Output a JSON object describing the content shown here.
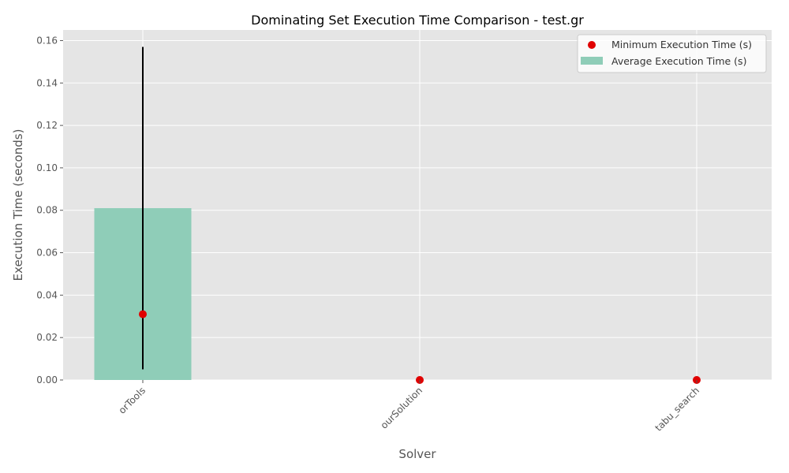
{
  "chart_data": {
    "type": "bar",
    "title": "Dominating Set Execution Time Comparison - test.gr",
    "xlabel": "Solver",
    "ylabel": "Execution Time (seconds)",
    "categories": [
      "orTools",
      "ourSolution",
      "tabu_search"
    ],
    "ylim": [
      0,
      0.165
    ],
    "yticks": [
      0.0,
      0.02,
      0.04,
      0.06,
      0.08,
      0.1,
      0.12,
      0.14,
      0.16
    ],
    "ytick_labels": [
      "0.00",
      "0.02",
      "0.04",
      "0.06",
      "0.08",
      "0.10",
      "0.12",
      "0.14",
      "0.16"
    ],
    "grid": true,
    "legend_position": "top-right",
    "series": [
      {
        "name": "Average Execution Time (s)",
        "kind": "bar",
        "color": "#8fcdb8",
        "values": [
          0.081,
          0.0,
          0.0
        ],
        "error": [
          [
            0.005,
            0.157
          ],
          [
            0.0,
            0.0
          ],
          [
            0.0,
            0.0
          ]
        ]
      },
      {
        "name": "Minimum Execution Time (s)",
        "kind": "scatter",
        "color": "#e00000",
        "values": [
          0.031,
          0.0,
          0.0
        ]
      }
    ]
  }
}
